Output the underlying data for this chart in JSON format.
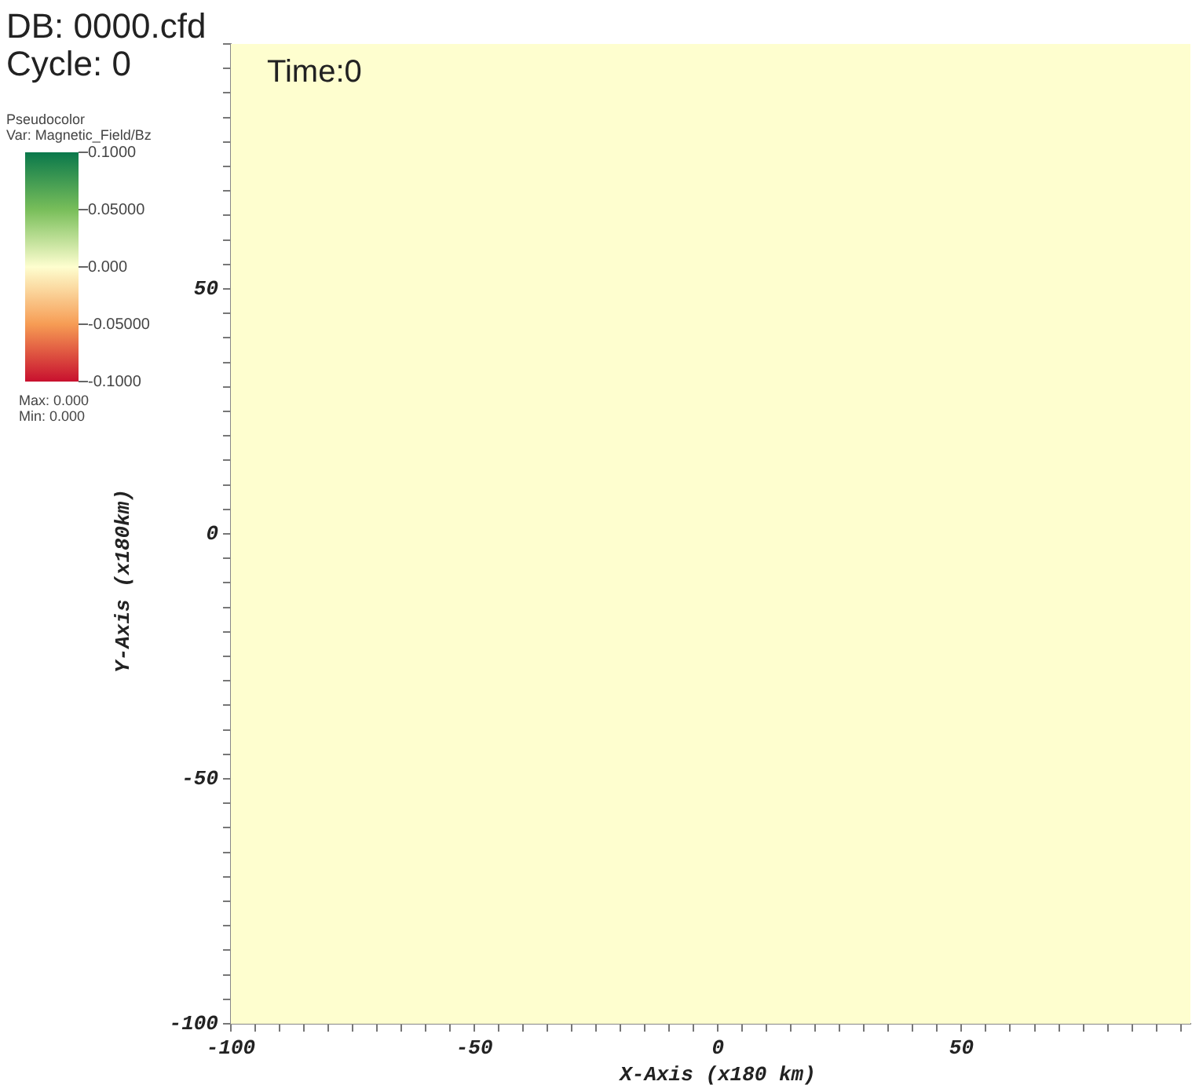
{
  "chart_data": {
    "type": "heatmap",
    "title": "DB: 0000.cfd",
    "subtitle": "Cycle: 0",
    "xlabel": "X-Axis (x180 km)",
    "ylabel": "Y-Axis (x180km)",
    "clabel": "Var: Magnetic_Field/Bz",
    "annotations": [
      "Time:0",
      "Pseudocolor",
      "Max: 0.000",
      "Min: 0.000"
    ],
    "cells": [
      [
        0
      ]
    ],
    "xlim": [
      -100,
      97
    ],
    "ylim": [
      -100,
      100
    ],
    "xticks": [
      -100,
      {
        "value": -95,
        "label": null
      },
      {
        "value": -90,
        "label": null
      },
      {
        "value": -85,
        "label": null
      },
      {
        "value": -80,
        "label": null
      },
      {
        "value": -75,
        "label": null
      },
      {
        "value": -70,
        "label": null
      },
      {
        "value": -65,
        "label": null
      },
      {
        "value": -60,
        "label": null
      },
      {
        "value": -55,
        "label": null
      },
      -50,
      {
        "value": -45,
        "label": null
      },
      {
        "value": -40,
        "label": null
      },
      {
        "value": -35,
        "label": null
      },
      {
        "value": -30,
        "label": null
      },
      {
        "value": -25,
        "label": null
      },
      {
        "value": -20,
        "label": null
      },
      {
        "value": -15,
        "label": null
      },
      {
        "value": -10,
        "label": null
      },
      {
        "value": -5,
        "label": null
      },
      0,
      {
        "value": 5,
        "label": null
      },
      {
        "value": 10,
        "label": null
      },
      {
        "value": 15,
        "label": null
      },
      {
        "value": 20,
        "label": null
      },
      {
        "value": 25,
        "label": null
      },
      {
        "value": 30,
        "label": null
      },
      {
        "value": 35,
        "label": null
      },
      {
        "value": 40,
        "label": null
      },
      {
        "value": 45,
        "label": null
      },
      50,
      {
        "value": 55,
        "label": null
      },
      {
        "value": 60,
        "label": null
      },
      {
        "value": 65,
        "label": null
      },
      {
        "value": 70,
        "label": null
      },
      {
        "value": 75,
        "label": null
      },
      {
        "value": 80,
        "label": null
      },
      {
        "value": 85,
        "label": null
      },
      {
        "value": 90,
        "label": null
      },
      {
        "value": 95,
        "label": null
      }
    ],
    "yticks": [
      -100,
      {
        "value": -95,
        "label": null
      },
      {
        "value": -90,
        "label": null
      },
      {
        "value": -85,
        "label": null
      },
      {
        "value": -80,
        "label": null
      },
      {
        "value": -75,
        "label": null
      },
      {
        "value": -70,
        "label": null
      },
      {
        "value": -65,
        "label": null
      },
      {
        "value": -60,
        "label": null
      },
      {
        "value": -55,
        "label": null
      },
      -50,
      {
        "value": -45,
        "label": null
      },
      {
        "value": -40,
        "label": null
      },
      {
        "value": -35,
        "label": null
      },
      {
        "value": -30,
        "label": null
      },
      {
        "value": -25,
        "label": null
      },
      {
        "value": -20,
        "label": null
      },
      {
        "value": -15,
        "label": null
      },
      {
        "value": -10,
        "label": null
      },
      {
        "value": -5,
        "label": null
      },
      0,
      {
        "value": 5,
        "label": null
      },
      {
        "value": 10,
        "label": null
      },
      {
        "value": 15,
        "label": null
      },
      {
        "value": 20,
        "label": null
      },
      {
        "value": 25,
        "label": null
      },
      {
        "value": 30,
        "label": null
      },
      {
        "value": 35,
        "label": null
      },
      {
        "value": 40,
        "label": null
      },
      {
        "value": 45,
        "label": null
      },
      50,
      {
        "value": 55,
        "label": null
      },
      {
        "value": 60,
        "label": null
      },
      {
        "value": 65,
        "label": null
      },
      {
        "value": 70,
        "label": null
      },
      {
        "value": 75,
        "label": null
      },
      {
        "value": 80,
        "label": null
      },
      {
        "value": 85,
        "label": null
      },
      {
        "value": 90,
        "label": null
      },
      {
        "value": 95,
        "label": null
      },
      {
        "value": 100,
        "label": null
      }
    ],
    "clim": [
      -0.1,
      0.1
    ],
    "cticks": [
      {
        "value": 0.1,
        "label": "0.1000"
      },
      {
        "value": 0.05,
        "label": "0.05000"
      },
      {
        "value": 0,
        "label": "0.000"
      },
      {
        "value": -0.05,
        "label": "-0.05000"
      },
      {
        "value": -0.1,
        "label": "-0.1000"
      }
    ]
  }
}
